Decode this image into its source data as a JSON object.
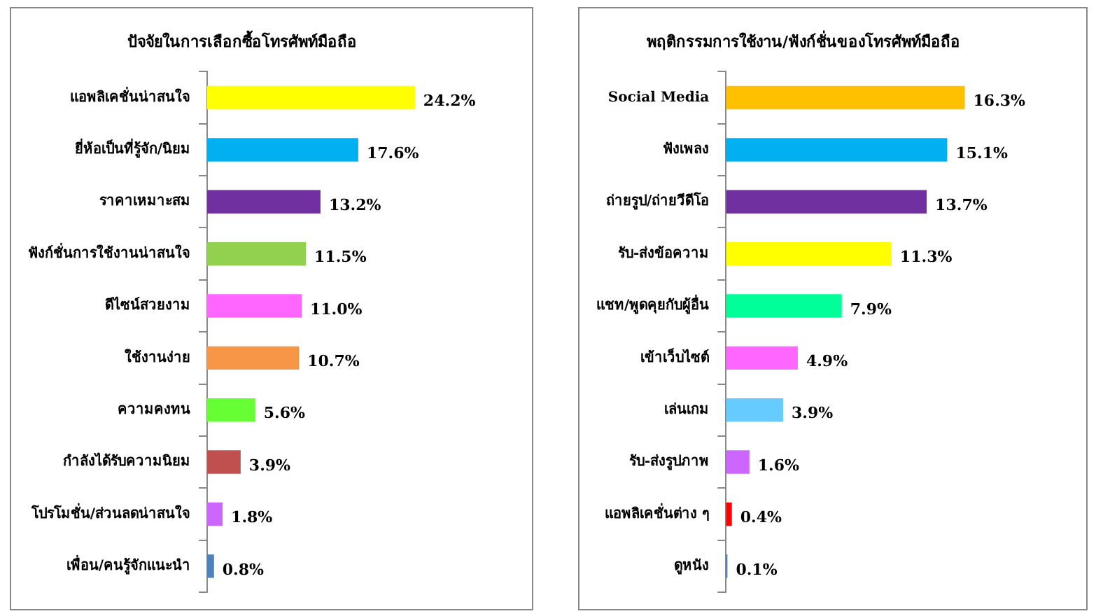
{
  "chart_data": [
    {
      "type": "bar",
      "orientation": "horizontal",
      "title": "ปัจจัยในการเลือกซื้อโทรศัพท์มือถือ",
      "categories": [
        "แอพลิเคชั่นน่าสนใจ",
        "ยี่ห้อเป็นที่รู้จัก/นิยม",
        "ราคาเหมาะสม",
        "ฟังก์ชั่นการใช้งานน่าสนใจ",
        "ดีไซน์สวยงาม",
        "ใช้งานง่าย",
        "ความคงทน",
        "กำลังได้รับความนิยม",
        "โปรโมชั่น/ส่วนลดน่าสนใจ",
        "เพื่อน/คนรู้จักแนะนำ"
      ],
      "values": [
        24.2,
        17.6,
        13.2,
        11.5,
        11.0,
        10.7,
        5.6,
        3.9,
        1.8,
        0.8
      ],
      "value_labels": [
        "24.2%",
        "17.6%",
        "13.2%",
        "11.5%",
        "11.0%",
        "10.7%",
        "5.6%",
        "3.9%",
        "1.8%",
        "0.8%"
      ],
      "colors": [
        "#ffff00",
        "#00b0f0",
        "#7030a0",
        "#92d050",
        "#ff66ff",
        "#f79646",
        "#66ff33",
        "#c0504d",
        "#cc66ff",
        "#4f81bd"
      ]
    },
    {
      "type": "bar",
      "orientation": "horizontal",
      "title": "พฤติกรรมการใช้งาน/ฟังก์ชั่นของโทรศัพท์มือถือ",
      "categories": [
        "Social Media",
        "ฟังเพลง",
        "ถ่ายรูป/ถ่ายวีดีโอ",
        "รับ-ส่งข้อความ",
        "แชท/พูดคุยกับผู้อื่น",
        "เข้าเว็บไซต์",
        "เล่นเกม",
        "รับ-ส่งรูปภาพ",
        "แอพลิเคชั่นต่าง ๆ",
        "ดูหนัง"
      ],
      "values": [
        16.3,
        15.1,
        13.7,
        11.3,
        7.9,
        4.9,
        3.9,
        1.6,
        0.4,
        0.1
      ],
      "value_labels": [
        "16.3%",
        "15.1%",
        "13.7%",
        "11.3%",
        "7.9%",
        "4.9%",
        "3.9%",
        "1.6%",
        "0.4%",
        "0.1%"
      ],
      "colors": [
        "#ffc000",
        "#00b0f0",
        "#7030a0",
        "#ffff00",
        "#00ff99",
        "#ff66ff",
        "#66ccff",
        "#cc66ff",
        "#ff0000",
        "#4f81bd"
      ]
    }
  ]
}
